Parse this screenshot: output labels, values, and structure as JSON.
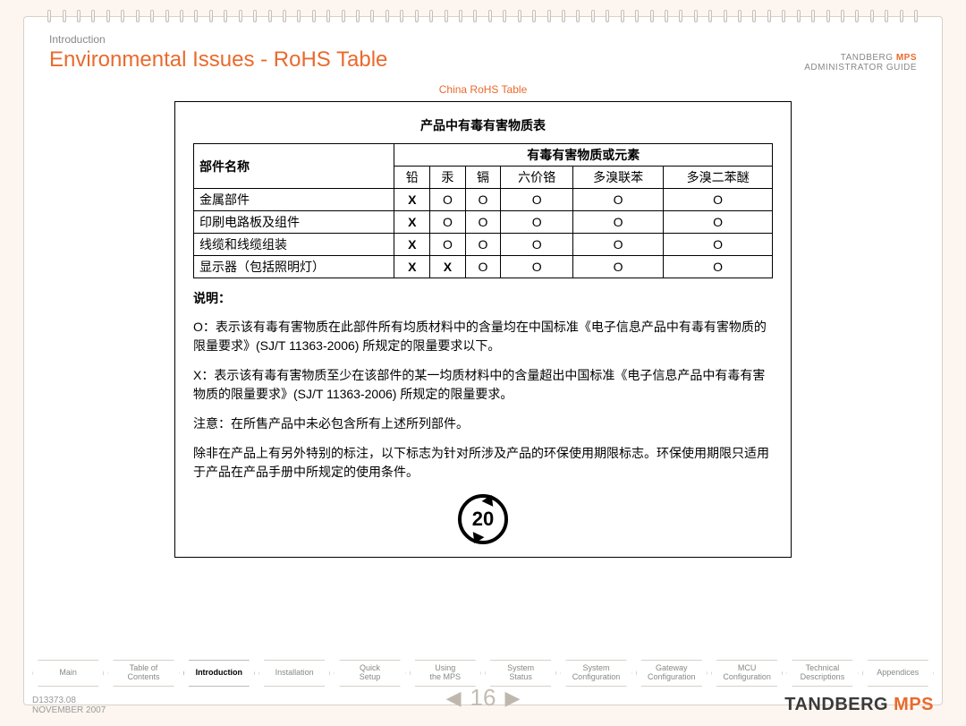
{
  "breadcrumb": "Introduction",
  "page_title": "Environmental Issues - RoHS Table",
  "doc_brand_line1_a": "TANDBERG ",
  "doc_brand_line1_b": "MPS",
  "doc_brand_line2": "ADMINISTRATOR GUIDE",
  "subheading": "China RoHS Table",
  "table_caption": "产品中有毒有害物质表",
  "col_part": "部件名称",
  "col_group": "有毒有害物质或元素",
  "substances": [
    "铅",
    "汞",
    "镉",
    "六价铬",
    "多溴联苯",
    "多溴二苯醚"
  ],
  "rows": [
    {
      "part": "金属部件",
      "vals": [
        "X",
        "O",
        "O",
        "O",
        "O",
        "O"
      ]
    },
    {
      "part": "印刷电路板及组件",
      "vals": [
        "X",
        "O",
        "O",
        "O",
        "O",
        "O"
      ]
    },
    {
      "part": "线缆和线缆组装",
      "vals": [
        "X",
        "O",
        "O",
        "O",
        "O",
        "O"
      ]
    },
    {
      "part": "显示器（包括照明灯）",
      "vals": [
        "X",
        "X",
        "O",
        "O",
        "O",
        "O"
      ]
    }
  ],
  "explain_label": "说明：",
  "para_o": "O：表示该有毒有害物质在此部件所有均质材料中的含量均在中国标准《电子信息产品中有毒有害物质的限量要求》(SJ/T 11363-2006) 所规定的限量要求以下。",
  "para_x": "X：表示该有毒有害物质至少在该部件的某一均质材料中的含量超出中国标准《电子信息产品中有毒有害物质的限量要求》(SJ/T 11363-2006) 所规定的限量要求。",
  "para_note": "注意：在所售产品中未必包含所有上述所列部件。",
  "para_efup": "除非在产品上有另外特别的标注，以下标志为针对所涉及产品的环保使用期限标志。环保使用期限只适用于产品在产品手册中所规定的使用条件。",
  "efup_years": "20",
  "tabs": [
    {
      "label": "Main",
      "active": false
    },
    {
      "label": "Table of\nContents",
      "active": false
    },
    {
      "label": "Introduction",
      "active": true
    },
    {
      "label": "Installation",
      "active": false
    },
    {
      "label": "Quick\nSetup",
      "active": false
    },
    {
      "label": "Using\nthe MPS",
      "active": false
    },
    {
      "label": "System\nStatus",
      "active": false
    },
    {
      "label": "System\nConfiguration",
      "active": false
    },
    {
      "label": "Gateway\nConfiguration",
      "active": false
    },
    {
      "label": "MCU\nConfiguration",
      "active": false
    },
    {
      "label": "Technical\nDescriptions",
      "active": false
    },
    {
      "label": "Appendices",
      "active": false
    }
  ],
  "doc_id": "D13373.08",
  "doc_date": "NOVEMBER 2007",
  "page_number": "16",
  "footer_brand_a": "TANDBERG ",
  "footer_brand_b": "MPS"
}
